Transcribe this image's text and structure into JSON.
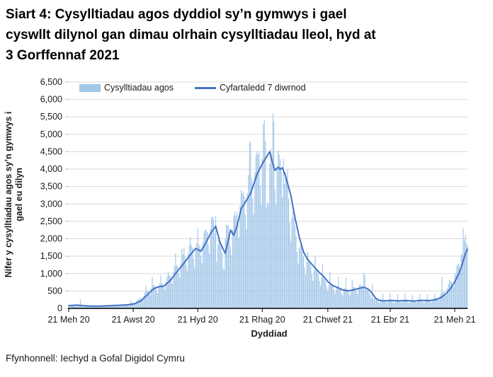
{
  "title_lines": [
    "Siart 4: Cysylltiadau agos dyddiol sy’n gymwys i gael",
    "cyswllt dilynol gan dimau olrhain cysylltiadau lleol, hyd at",
    "3 Gorffennaf 2021"
  ],
  "source": "Ffynhonnell: Iechyd a Gofal Digidol Cymru",
  "chart_data": {
    "type": "bar+line",
    "title": "Siart 4: Cysylltiadau agos dyddiol sy’n gymwys i gael cyswllt dilynol gan dimau olrhain cysylltiadau lleol, hyd at 3 Gorffennaf 2021",
    "xlabel": "Dyddiad",
    "ylabel": "Nifer y cysylltiadau agos sy’n gymwys i gael eu dilyn",
    "ylabel_lines": [
      "Nifer y cysylltiadau agos sy’n gymwys i",
      "gael eu dilyn"
    ],
    "ylim": [
      0,
      6500
    ],
    "ytick_step": 500,
    "yticks": [
      "0",
      "500",
      "1,000",
      "1,500",
      "2,000",
      "2,500",
      "3,000",
      "3,500",
      "4,000",
      "4,500",
      "5,000",
      "5,500",
      "6,000",
      "6,500"
    ],
    "x_total_days": 377,
    "xticks": [
      {
        "day": 0,
        "label": "21 Meh 20"
      },
      {
        "day": 61,
        "label": "21 Awst 20"
      },
      {
        "day": 122,
        "label": "21 Hyd 20"
      },
      {
        "day": 183,
        "label": "21 Rhag 20"
      },
      {
        "day": 245,
        "label": "21 Chwef 21"
      },
      {
        "day": 304,
        "label": "21 Ebr 21"
      },
      {
        "day": 365,
        "label": "21 Meh 21"
      }
    ],
    "legend": [
      {
        "label": "Cysylltiadau agos",
        "type": "area",
        "color": "#A1C6E8"
      },
      {
        "label": "Cyfartaledd 7 diwrnod",
        "type": "line",
        "color": "#4472C4"
      }
    ],
    "grid": "horizontal",
    "legend_position": "top-inside",
    "colors": {
      "bars": "#A1C6E8",
      "line": "#4472C4",
      "grid": "#D9D9D9",
      "axis": "#000000",
      "tick": "#BFBFBF"
    },
    "series": {
      "avg7_anchors": [
        [
          0,
          80
        ],
        [
          8,
          95
        ],
        [
          11,
          85
        ],
        [
          18,
          70
        ],
        [
          25,
          65
        ],
        [
          32,
          70
        ],
        [
          40,
          80
        ],
        [
          48,
          90
        ],
        [
          55,
          100
        ],
        [
          62,
          130
        ],
        [
          68,
          210
        ],
        [
          74,
          380
        ],
        [
          80,
          560
        ],
        [
          85,
          620
        ],
        [
          90,
          640
        ],
        [
          96,
          800
        ],
        [
          102,
          1040
        ],
        [
          108,
          1260
        ],
        [
          114,
          1500
        ],
        [
          120,
          1720
        ],
        [
          125,
          1640
        ],
        [
          130,
          1900
        ],
        [
          134,
          2150
        ],
        [
          139,
          2360
        ],
        [
          143,
          1900
        ],
        [
          148,
          1580
        ],
        [
          153,
          2250
        ],
        [
          156,
          2100
        ],
        [
          159,
          2350
        ],
        [
          163,
          2860
        ],
        [
          168,
          3100
        ],
        [
          172,
          3300
        ],
        [
          178,
          3850
        ],
        [
          183,
          4150
        ],
        [
          187,
          4350
        ],
        [
          190,
          4500
        ],
        [
          193,
          4150
        ],
        [
          195,
          3960
        ],
        [
          198,
          4060
        ],
        [
          200,
          3990
        ],
        [
          202,
          4040
        ],
        [
          205,
          3800
        ],
        [
          210,
          3250
        ],
        [
          214,
          2600
        ],
        [
          218,
          2050
        ],
        [
          222,
          1620
        ],
        [
          226,
          1400
        ],
        [
          231,
          1230
        ],
        [
          236,
          1060
        ],
        [
          241,
          920
        ],
        [
          245,
          770
        ],
        [
          250,
          650
        ],
        [
          254,
          600
        ],
        [
          259,
          535
        ],
        [
          264,
          505
        ],
        [
          269,
          530
        ],
        [
          274,
          570
        ],
        [
          279,
          610
        ],
        [
          283,
          555
        ],
        [
          286,
          470
        ],
        [
          290,
          300
        ],
        [
          293,
          235
        ],
        [
          298,
          215
        ],
        [
          305,
          230
        ],
        [
          312,
          215
        ],
        [
          319,
          228
        ],
        [
          326,
          210
        ],
        [
          333,
          232
        ],
        [
          340,
          222
        ],
        [
          347,
          248
        ],
        [
          352,
          310
        ],
        [
          357,
          430
        ],
        [
          361,
          570
        ],
        [
          365,
          760
        ],
        [
          369,
          1010
        ],
        [
          372,
          1260
        ],
        [
          375,
          1560
        ],
        [
          377,
          1700
        ]
      ],
      "daily_generation": {
        "lead_days": 3,
        "weekday_multipliers_sun_first": [
          0.7,
          1.0,
          1.13,
          1.12,
          1.08,
          1.02,
          0.84
        ]
      },
      "daily_overrides": [
        [
          11,
          260
        ],
        [
          59,
          240
        ],
        [
          73,
          640
        ],
        [
          79,
          900
        ],
        [
          87,
          950
        ],
        [
          94,
          1050
        ],
        [
          101,
          1580
        ],
        [
          107,
          1700
        ],
        [
          109,
          1750
        ],
        [
          115,
          2050
        ],
        [
          122,
          2300
        ],
        [
          129,
          2250
        ],
        [
          137,
          2560
        ],
        [
          139,
          2660
        ],
        [
          146,
          1150
        ],
        [
          147,
          1100
        ],
        [
          150,
          2400
        ],
        [
          158,
          2660
        ],
        [
          164,
          3300
        ],
        [
          171,
          4800
        ],
        [
          172,
          4750
        ],
        [
          177,
          4400
        ],
        [
          180,
          4470
        ],
        [
          184,
          5300
        ],
        [
          185,
          5420
        ],
        [
          187,
          2900
        ],
        [
          188,
          3050
        ],
        [
          193,
          5600
        ],
        [
          194,
          5380
        ],
        [
          196,
          2980
        ],
        [
          199,
          4420
        ],
        [
          203,
          4300
        ],
        [
          207,
          4000
        ],
        [
          226,
          1620
        ],
        [
          233,
          1500
        ],
        [
          240,
          1270
        ],
        [
          247,
          1060
        ],
        [
          255,
          900
        ],
        [
          262,
          880
        ],
        [
          268,
          830
        ],
        [
          279,
          1020
        ],
        [
          280,
          960
        ],
        [
          287,
          700
        ],
        [
          297,
          420
        ],
        [
          304,
          430
        ],
        [
          311,
          400
        ],
        [
          318,
          430
        ],
        [
          325,
          385
        ],
        [
          332,
          405
        ],
        [
          339,
          395
        ],
        [
          346,
          430
        ],
        [
          353,
          900
        ],
        [
          360,
          820
        ],
        [
          366,
          1020
        ],
        [
          371,
          1540
        ],
        [
          373,
          2300
        ],
        [
          374,
          1950
        ],
        [
          375,
          2120
        ],
        [
          376,
          1880
        ],
        [
          377,
          1820
        ]
      ]
    }
  }
}
